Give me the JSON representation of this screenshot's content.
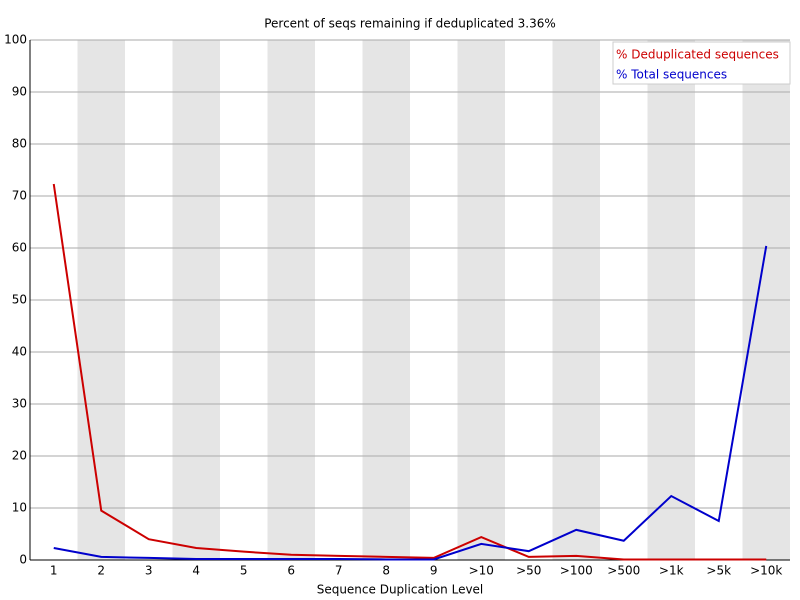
{
  "chart_data": {
    "type": "line",
    "title": "Percent of seqs remaining if deduplicated 3.36%",
    "x_label": "Sequence Duplication Level",
    "categories": [
      "1",
      "2",
      "3",
      "4",
      "5",
      "6",
      "7",
      "8",
      "9",
      ">10",
      ">50",
      ">100",
      ">500",
      ">1k",
      ">5k",
      ">10k"
    ],
    "series": [
      {
        "name": "% Deduplicated sequences",
        "color": "#cc0000",
        "values": [
          72.3,
          9.5,
          4.0,
          2.3,
          1.6,
          1.0,
          0.8,
          0.6,
          0.4,
          4.4,
          0.6,
          0.8,
          0.1,
          0.1,
          0.1,
          0.1
        ]
      },
      {
        "name": "% Total sequences",
        "color": "#0000cc",
        "values": [
          2.3,
          0.6,
          0.4,
          0.2,
          0.2,
          0.2,
          0.2,
          0.1,
          0.1,
          3.1,
          1.7,
          5.8,
          3.7,
          12.3,
          7.5,
          60.4
        ]
      }
    ],
    "ylim": [
      0,
      100
    ],
    "yticks": [
      0,
      10,
      20,
      30,
      40,
      50,
      60,
      70,
      80,
      90,
      100
    ],
    "grid": true,
    "legend": "top-right"
  }
}
